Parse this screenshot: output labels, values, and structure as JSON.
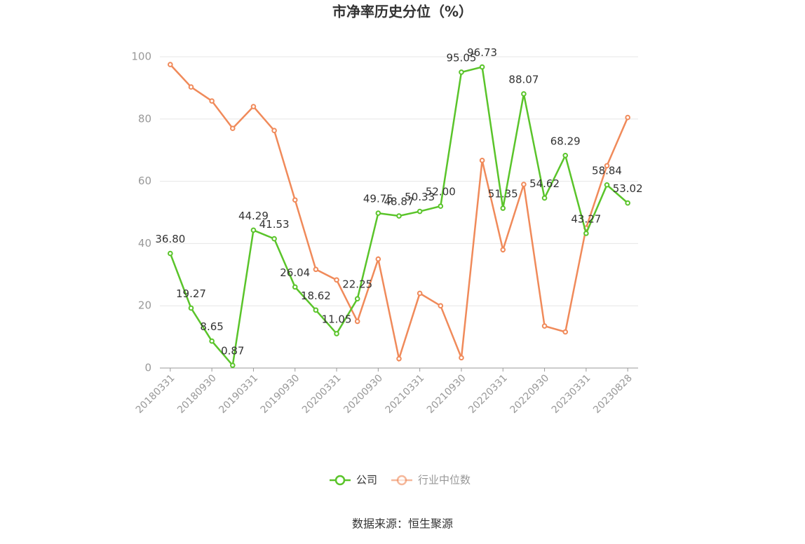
{
  "chart_data": {
    "type": "line",
    "title": "市净率历史分位（%）",
    "source": "数据来源：恒生聚源",
    "categories": [
      "20180331",
      null,
      "20180930",
      null,
      "20190331",
      null,
      "20190930",
      null,
      "20200331",
      null,
      "20200930",
      null,
      "20210331",
      null,
      "20210930",
      null,
      "20220331",
      null,
      "20220930",
      null,
      "20230331",
      null,
      "20230828"
    ],
    "series": [
      {
        "name": "公司",
        "color": "#5ac42a",
        "values": [
          36.8,
          19.27,
          8.65,
          0.87,
          44.29,
          41.53,
          26.04,
          18.62,
          11.05,
          22.25,
          49.75,
          48.87,
          50.33,
          52.0,
          95.05,
          96.73,
          51.35,
          88.07,
          54.62,
          68.29,
          43.27,
          58.84,
          53.02
        ],
        "value_labels": [
          "36.80",
          "19.27",
          "8.65",
          "0.87",
          "44.29",
          "41.53",
          "26.04",
          "18.62",
          "11.05",
          "22.25",
          "49.75",
          "48.87",
          "50.33",
          "52.00",
          "95.05",
          "96.73",
          "51.35",
          "88.07",
          "54.62",
          "68.29",
          "43.27",
          "58.84",
          "53.02"
        ]
      },
      {
        "name": "行业中位数",
        "color": "#f08a5a",
        "values": [
          97.5,
          90.3,
          85.8,
          77,
          84,
          76.3,
          54,
          31.7,
          28.3,
          15,
          35,
          3,
          24,
          20,
          3.3,
          66.7,
          38,
          59,
          13.5,
          11.6,
          45,
          65,
          80.5
        ]
      }
    ],
    "ylim": [
      0,
      100
    ],
    "yticks": [
      0,
      20,
      40,
      60,
      80,
      100
    ],
    "grid": true
  }
}
